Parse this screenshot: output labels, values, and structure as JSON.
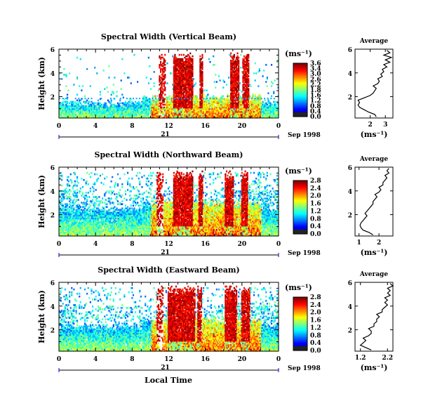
{
  "chart_data": [
    {
      "type": "heatmap",
      "title": "Spectral Width (Vertical Beam)",
      "ylabel": "Height (km)",
      "xlabel": "",
      "xticks": [
        "0",
        "4",
        "8",
        "12",
        "16",
        "20",
        "0"
      ],
      "yticks": [
        "2",
        "4",
        "6"
      ],
      "xlim": [
        0,
        24
      ],
      "ylim": [
        0.2,
        6
      ],
      "date_label": "21",
      "month_label": "Sep 1998",
      "colorbar": {
        "unit": "(ms⁻¹)",
        "ticks": [
          "3.6",
          "3.4",
          "3.0",
          "2.6",
          "2.2",
          "1.8",
          "1.6",
          "1.2",
          "0.8",
          "0.4",
          "0.0"
        ],
        "max": 3.6
      },
      "average": {
        "title": "Average",
        "xlabel": "(ms⁻¹)",
        "xticks": [
          "2",
          "3"
        ],
        "xlim": [
          1.0,
          3.5
        ],
        "yticks": [
          "2",
          "4",
          "6"
        ],
        "ylim": [
          0.2,
          6
        ],
        "heights": [
          0.3,
          0.5,
          0.7,
          0.9,
          1.1,
          1.3,
          1.5,
          1.7,
          1.9,
          2.1,
          2.3,
          2.5,
          2.7,
          2.9,
          3.1,
          3.3,
          3.5,
          3.7,
          3.9,
          4.1,
          4.3,
          4.5,
          4.7,
          4.9,
          5.1,
          5.3,
          5.5,
          5.7,
          5.9
        ],
        "values": [
          2.4,
          2.3,
          1.9,
          1.6,
          1.3,
          1.2,
          1.3,
          1.2,
          1.6,
          2.0,
          2.2,
          2.3,
          2.4,
          2.2,
          2.5,
          2.6,
          2.5,
          2.8,
          2.7,
          2.9,
          2.8,
          3.1,
          2.9,
          3.3,
          3.0,
          3.4,
          2.9,
          3.3,
          3.1
        ]
      }
    },
    {
      "type": "heatmap",
      "title": "Spectral Width (Northward Beam)",
      "ylabel": "Height (km)",
      "xlabel": "",
      "xticks": [
        "0",
        "4",
        "8",
        "12",
        "16",
        "20",
        "0"
      ],
      "yticks": [
        "2",
        "4",
        "6"
      ],
      "xlim": [
        0,
        24
      ],
      "ylim": [
        0.2,
        6
      ],
      "date_label": "21",
      "month_label": "Sep 1998",
      "colorbar": {
        "unit": "(ms⁻¹)",
        "ticks": [
          "2.8",
          "2.4",
          "2.0",
          "1.6",
          "1.2",
          "0.8",
          "0.4",
          "0.0"
        ],
        "max": 2.8
      },
      "average": {
        "title": "Average",
        "xlabel": "(ms⁻¹)",
        "xticks": [
          "1",
          "2"
        ],
        "xlim": [
          0.8,
          2.7
        ],
        "yticks": [
          "2",
          "4",
          "6"
        ],
        "ylim": [
          0.2,
          6
        ],
        "heights": [
          0.3,
          0.5,
          0.7,
          0.9,
          1.1,
          1.3,
          1.5,
          1.7,
          1.9,
          2.1,
          2.3,
          2.5,
          2.7,
          2.9,
          3.1,
          3.3,
          3.5,
          3.7,
          3.9,
          4.1,
          4.3,
          4.5,
          4.7,
          4.9,
          5.1,
          5.3,
          5.5,
          5.7,
          5.9
        ],
        "values": [
          1.7,
          1.5,
          1.2,
          1.1,
          1.05,
          1.1,
          1.2,
          1.3,
          1.4,
          1.3,
          1.4,
          1.5,
          1.6,
          1.7,
          1.7,
          1.8,
          1.9,
          1.8,
          2.0,
          2.1,
          2.0,
          2.2,
          2.2,
          2.3,
          2.4,
          2.3,
          2.5,
          2.4,
          2.5
        ]
      }
    },
    {
      "type": "heatmap",
      "title": "Spectral Width (Eastward Beam)",
      "ylabel": "Height (km)",
      "xlabel": "Local Time",
      "xticks": [
        "0",
        "4",
        "8",
        "12",
        "16",
        "20",
        "0"
      ],
      "yticks": [
        "2",
        "4",
        "6"
      ],
      "xlim": [
        0,
        24
      ],
      "ylim": [
        0.2,
        6
      ],
      "date_label": "21",
      "month_label": "Sep 1998",
      "colorbar": {
        "unit": "(ms⁻¹)",
        "ticks": [
          "2.8",
          "2.4",
          "2.0",
          "1.6",
          "1.2",
          "0.8",
          "0.4",
          "0.0"
        ],
        "max": 2.8
      },
      "average": {
        "title": "Average",
        "xlabel": "(ms⁻¹)",
        "xticks": [
          "1.2",
          "2.2"
        ],
        "xlim": [
          1.0,
          2.4
        ],
        "yticks": [
          "2",
          "4",
          "6"
        ],
        "ylim": [
          0.2,
          6
        ],
        "heights": [
          0.3,
          0.5,
          0.7,
          0.9,
          1.1,
          1.3,
          1.5,
          1.7,
          1.9,
          2.1,
          2.3,
          2.5,
          2.7,
          2.9,
          3.1,
          3.3,
          3.5,
          3.7,
          3.9,
          4.1,
          4.3,
          4.5,
          4.7,
          4.9,
          5.1,
          5.3,
          5.5,
          5.7,
          5.9
        ],
        "values": [
          1.6,
          1.4,
          1.2,
          1.3,
          1.4,
          1.3,
          1.5,
          1.6,
          1.6,
          1.5,
          1.7,
          1.7,
          1.8,
          1.8,
          1.9,
          1.8,
          2.0,
          2.0,
          2.1,
          2.2,
          2.1,
          2.2,
          2.1,
          2.3,
          2.2,
          2.3,
          2.2,
          2.4,
          2.3
        ]
      }
    }
  ]
}
